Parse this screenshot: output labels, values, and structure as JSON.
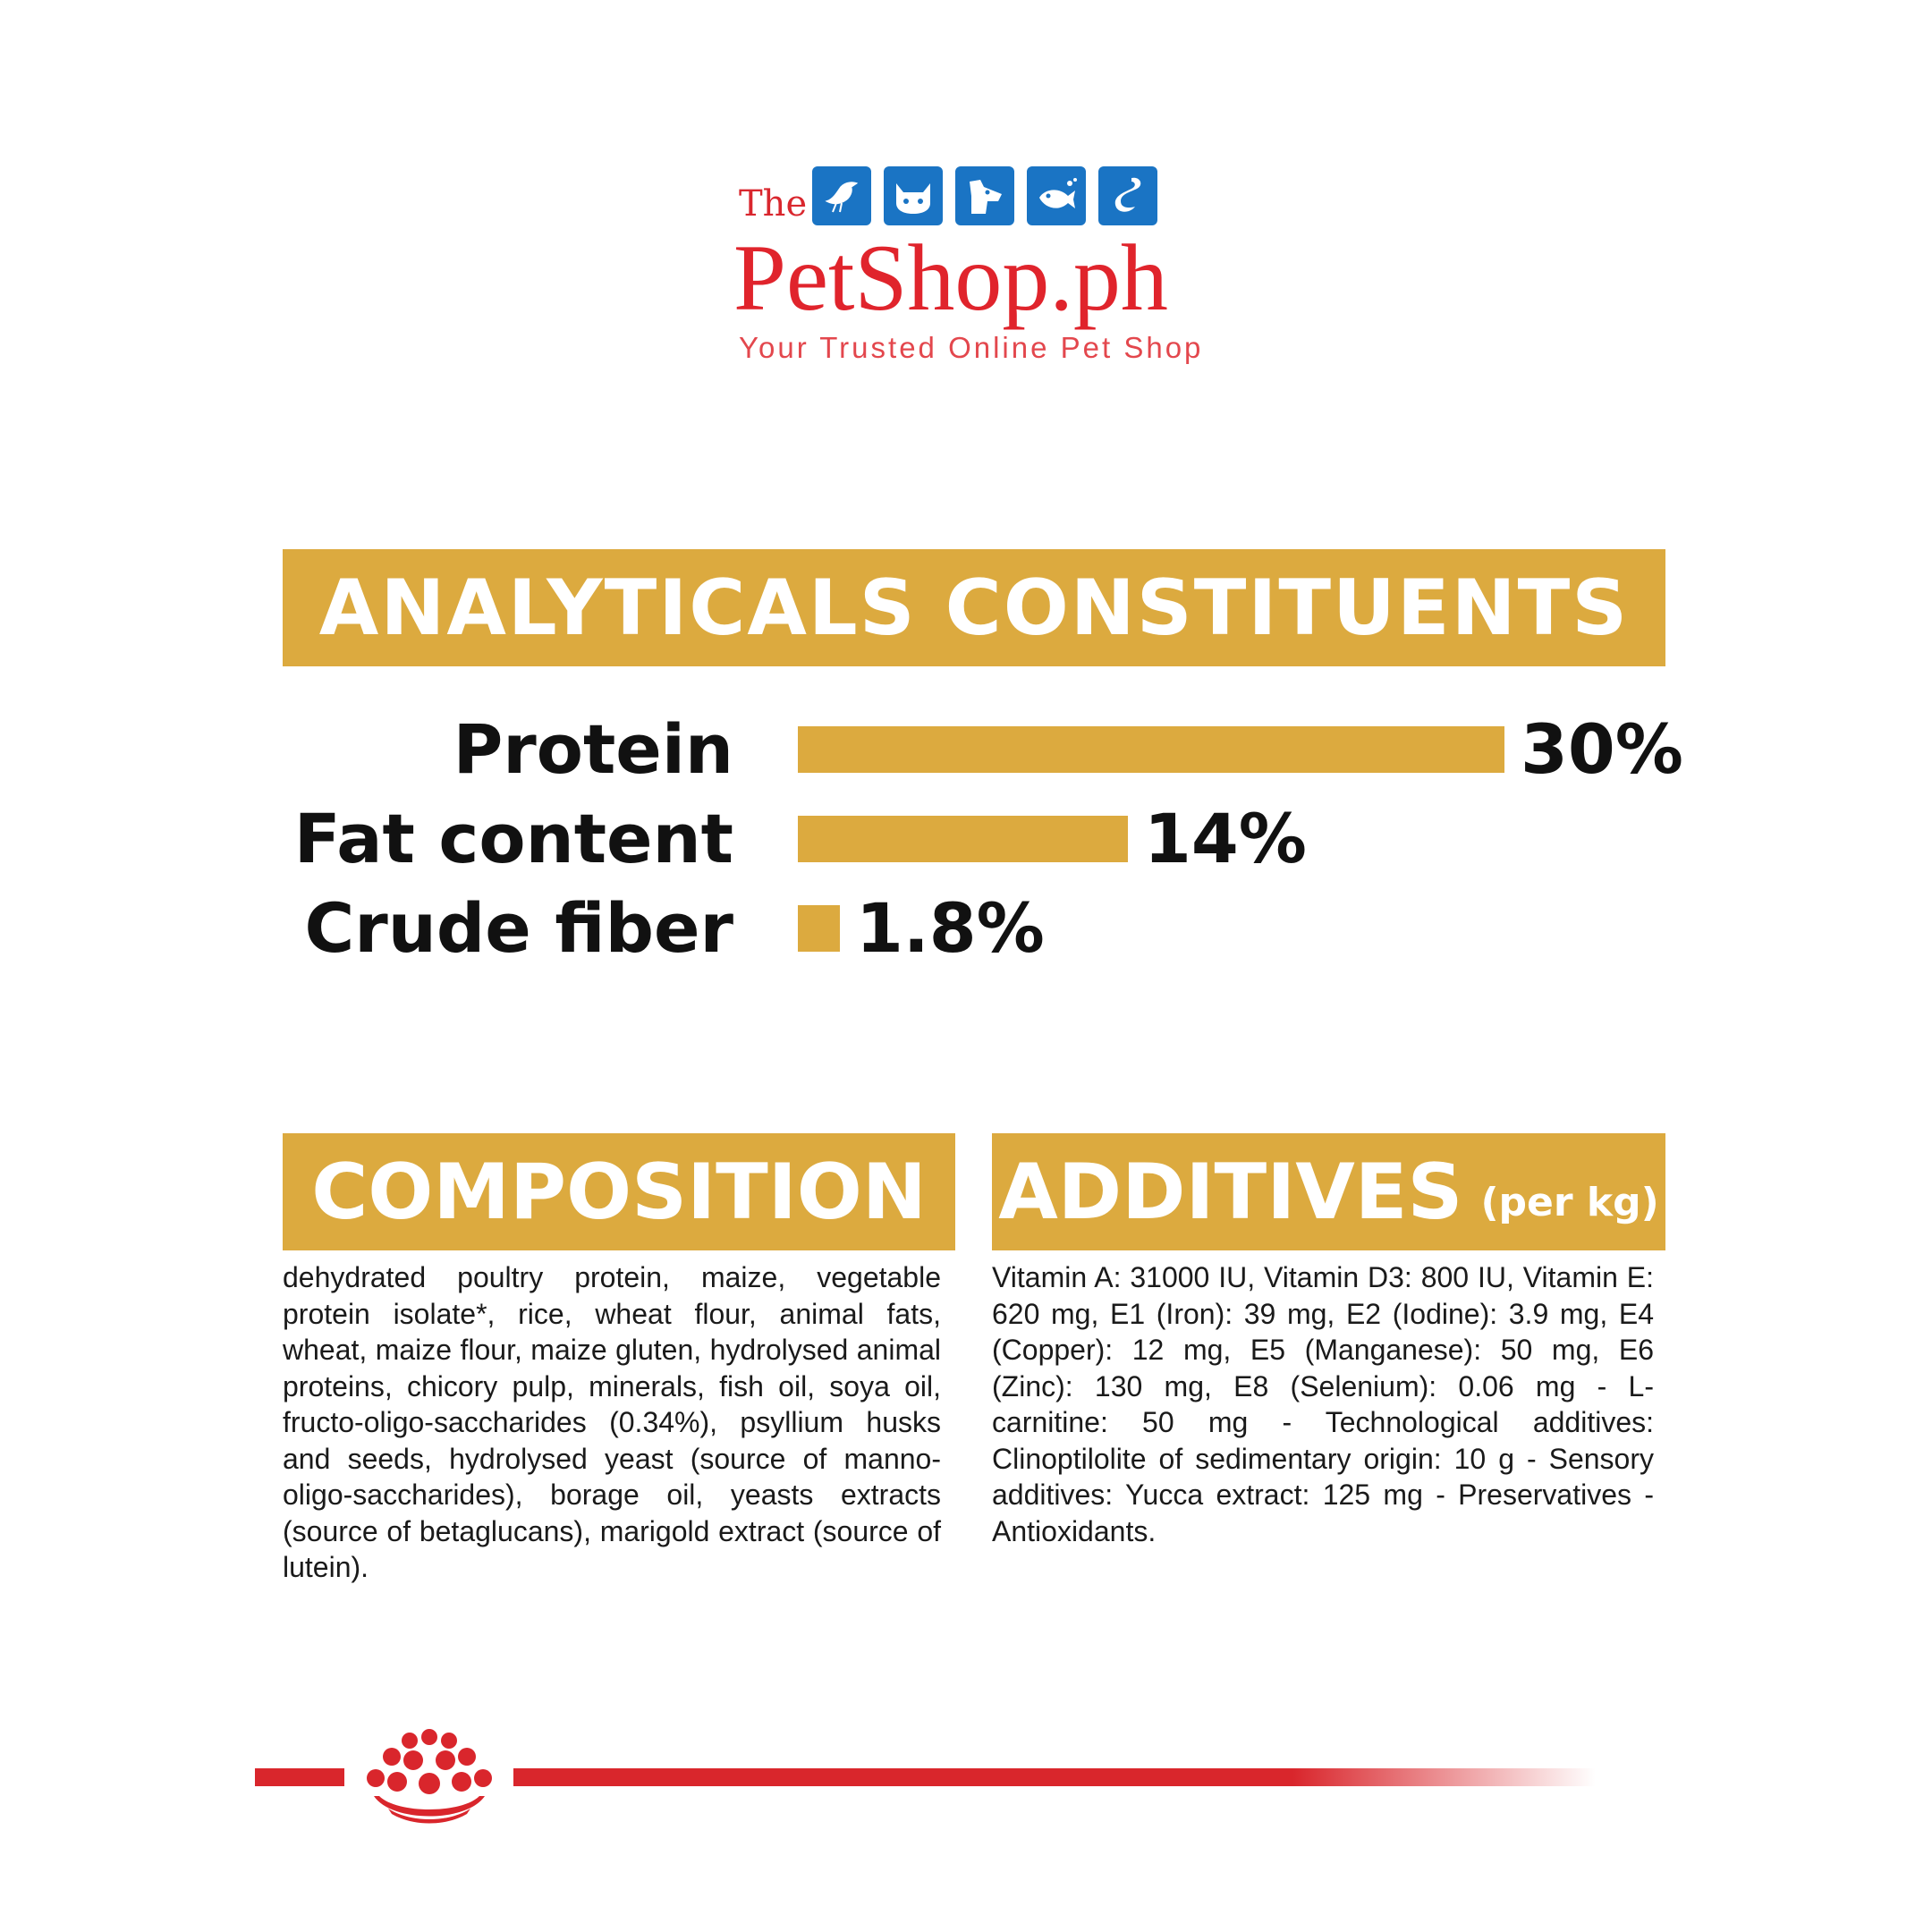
{
  "logo": {
    "the": "The",
    "name": "PetShop.ph",
    "tagline": "Your Trusted Online Pet Shop",
    "icons": [
      "bird-icon",
      "cat-icon",
      "dog-icon",
      "fish-icon",
      "snake-icon"
    ],
    "colors": {
      "red": "#e0242c",
      "blue": "#1a74c4"
    }
  },
  "analytics": {
    "title": "ANALYTICALS CONSTITUENTS",
    "rows": [
      {
        "label": "Protein",
        "value": "30%",
        "percent": 30
      },
      {
        "label": "Fat content",
        "value": "14%",
        "percent": 14
      },
      {
        "label": "Crude fiber",
        "value": "1.8%",
        "percent": 1.8
      }
    ]
  },
  "composition": {
    "title": "COMPOSITION",
    "text": "dehydrated poultry protein, maize, vegetable protein isolate*, rice, wheat flour, animal fats, wheat, maize flour, maize gluten, hydrolysed animal proteins, chicory pulp, minerals, fish oil, soya oil, fructo-oligo-saccharides (0.34%), psyllium husks and seeds, hydrolysed yeast (source of manno-oligo-saccharides), borage oil, yeasts extracts (source of betaglucans), marigold extract (source of lutein)."
  },
  "additives": {
    "title": "ADDITIVES",
    "subtitle": "(per kg)",
    "text": "Vitamin A: 31000 IU, Vitamin D3: 800 IU, Vitamin E: 620 mg, E1 (Iron): 39 mg, E2 (Iodine): 3.9 mg, E4 (Copper): 12 mg, E5 (Manganese): 50 mg, E6 (Zinc): 130 mg, E8 (Selenium): 0.06 mg - L-carnitine: 50 mg - Technological additives: Clinoptilolite of sedimentary origin: 10 g - Sensory additives: Yucca extract: 125 mg - Preservatives - Antioxidants."
  },
  "footer": {
    "brand_icon": "royal-canin-crown-icon",
    "line_color": "#d9262c"
  },
  "colors": {
    "accent": "#dcaa3f",
    "text": "#1a1a1a"
  }
}
